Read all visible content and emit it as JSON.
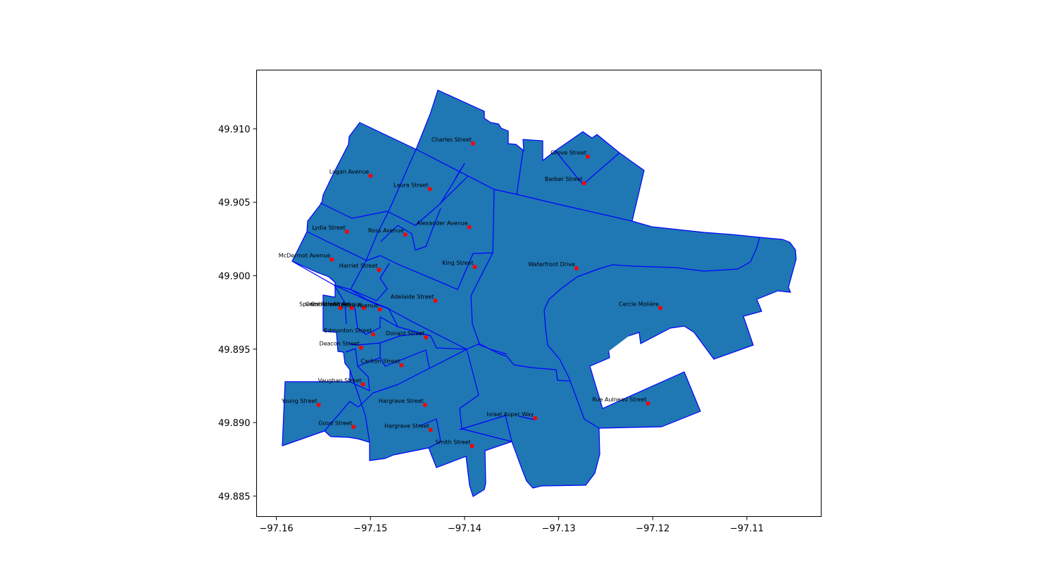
{
  "chart_data": {
    "type": "map",
    "colors": {
      "fill": "#1f77b4",
      "edge": "#0000ff",
      "marker": "#ff0000"
    },
    "xlim": [
      -97.1621,
      -97.1021
    ],
    "ylim": [
      49.8836,
      49.914
    ],
    "xticks": [
      "−97.16",
      "−97.15",
      "−97.14",
      "−97.13",
      "−97.12",
      "−97.11"
    ],
    "xtick_values": [
      -97.16,
      -97.15,
      -97.14,
      -97.13,
      -97.12,
      -97.11
    ],
    "yticks": [
      "49.885",
      "49.890",
      "49.895",
      "49.900",
      "49.905",
      "49.910"
    ],
    "ytick_values": [
      49.885,
      49.89,
      49.895,
      49.9,
      49.905,
      49.91
    ],
    "streets": [
      {
        "name": "Charles Street",
        "x": -97.1391,
        "y": 49.909
      },
      {
        "name": "Grove Street",
        "x": -97.1269,
        "y": 49.9081
      },
      {
        "name": "Barber Street",
        "x": -97.1273,
        "y": 49.9063
      },
      {
        "name": "Logan Avenue",
        "x": -97.15,
        "y": 49.9068
      },
      {
        "name": "Laura Street",
        "x": -97.1437,
        "y": 49.9059
      },
      {
        "name": "Alexander Avenue",
        "x": -97.1395,
        "y": 49.9033
      },
      {
        "name": "Lydia Street",
        "x": -97.1525,
        "y": 49.903
      },
      {
        "name": "Ross Avenue",
        "x": -97.1463,
        "y": 49.9028
      },
      {
        "name": "McDermot Avenue",
        "x": -97.1541,
        "y": 49.9011
      },
      {
        "name": "Harriet Street",
        "x": -97.1491,
        "y": 49.9004
      },
      {
        "name": "King Street",
        "x": -97.1389,
        "y": 49.9006
      },
      {
        "name": "Waterfront Drive",
        "x": -97.1281,
        "y": 49.9005
      },
      {
        "name": "Adelaide Street",
        "x": -97.1431,
        "y": 49.8983
      },
      {
        "name": "Cercle Molière",
        "x": -97.1192,
        "y": 49.8978
      },
      {
        "name": "Spence Street",
        "x": -97.1532,
        "y": 49.8978
      },
      {
        "name": "Carlton Street",
        "x": -97.152,
        "y": 49.8978
      },
      {
        "name": "Cumberland Avenue",
        "x": -97.1507,
        "y": 49.8978
      },
      {
        "name": "Ellice Avenue",
        "x": -97.149,
        "y": 49.8977
      },
      {
        "name": "Edmonton Street",
        "x": -97.1497,
        "y": 49.896
      },
      {
        "name": "Donald Street",
        "x": -97.1441,
        "y": 49.8958
      },
      {
        "name": "Deacon Street",
        "x": -97.151,
        "y": 49.8951
      },
      {
        "name": "Carlton Street",
        "x": -97.1467,
        "y": 49.8939
      },
      {
        "name": "Vaughan Street",
        "x": -97.1508,
        "y": 49.8926
      },
      {
        "name": "Young Street",
        "x": -97.1555,
        "y": 49.8912
      },
      {
        "name": "Hargrave Street",
        "x": -97.1442,
        "y": 49.8912
      },
      {
        "name": "Rue Aulneau Street",
        "x": -97.1205,
        "y": 49.8913
      },
      {
        "name": "Israel Asper Way",
        "x": -97.1325,
        "y": 49.8903
      },
      {
        "name": "Good Street",
        "x": -97.1518,
        "y": 49.8897
      },
      {
        "name": "Hargrave Street",
        "x": -97.1436,
        "y": 49.8895
      },
      {
        "name": "Smith Street",
        "x": -97.1392,
        "y": 49.8884
      }
    ]
  }
}
